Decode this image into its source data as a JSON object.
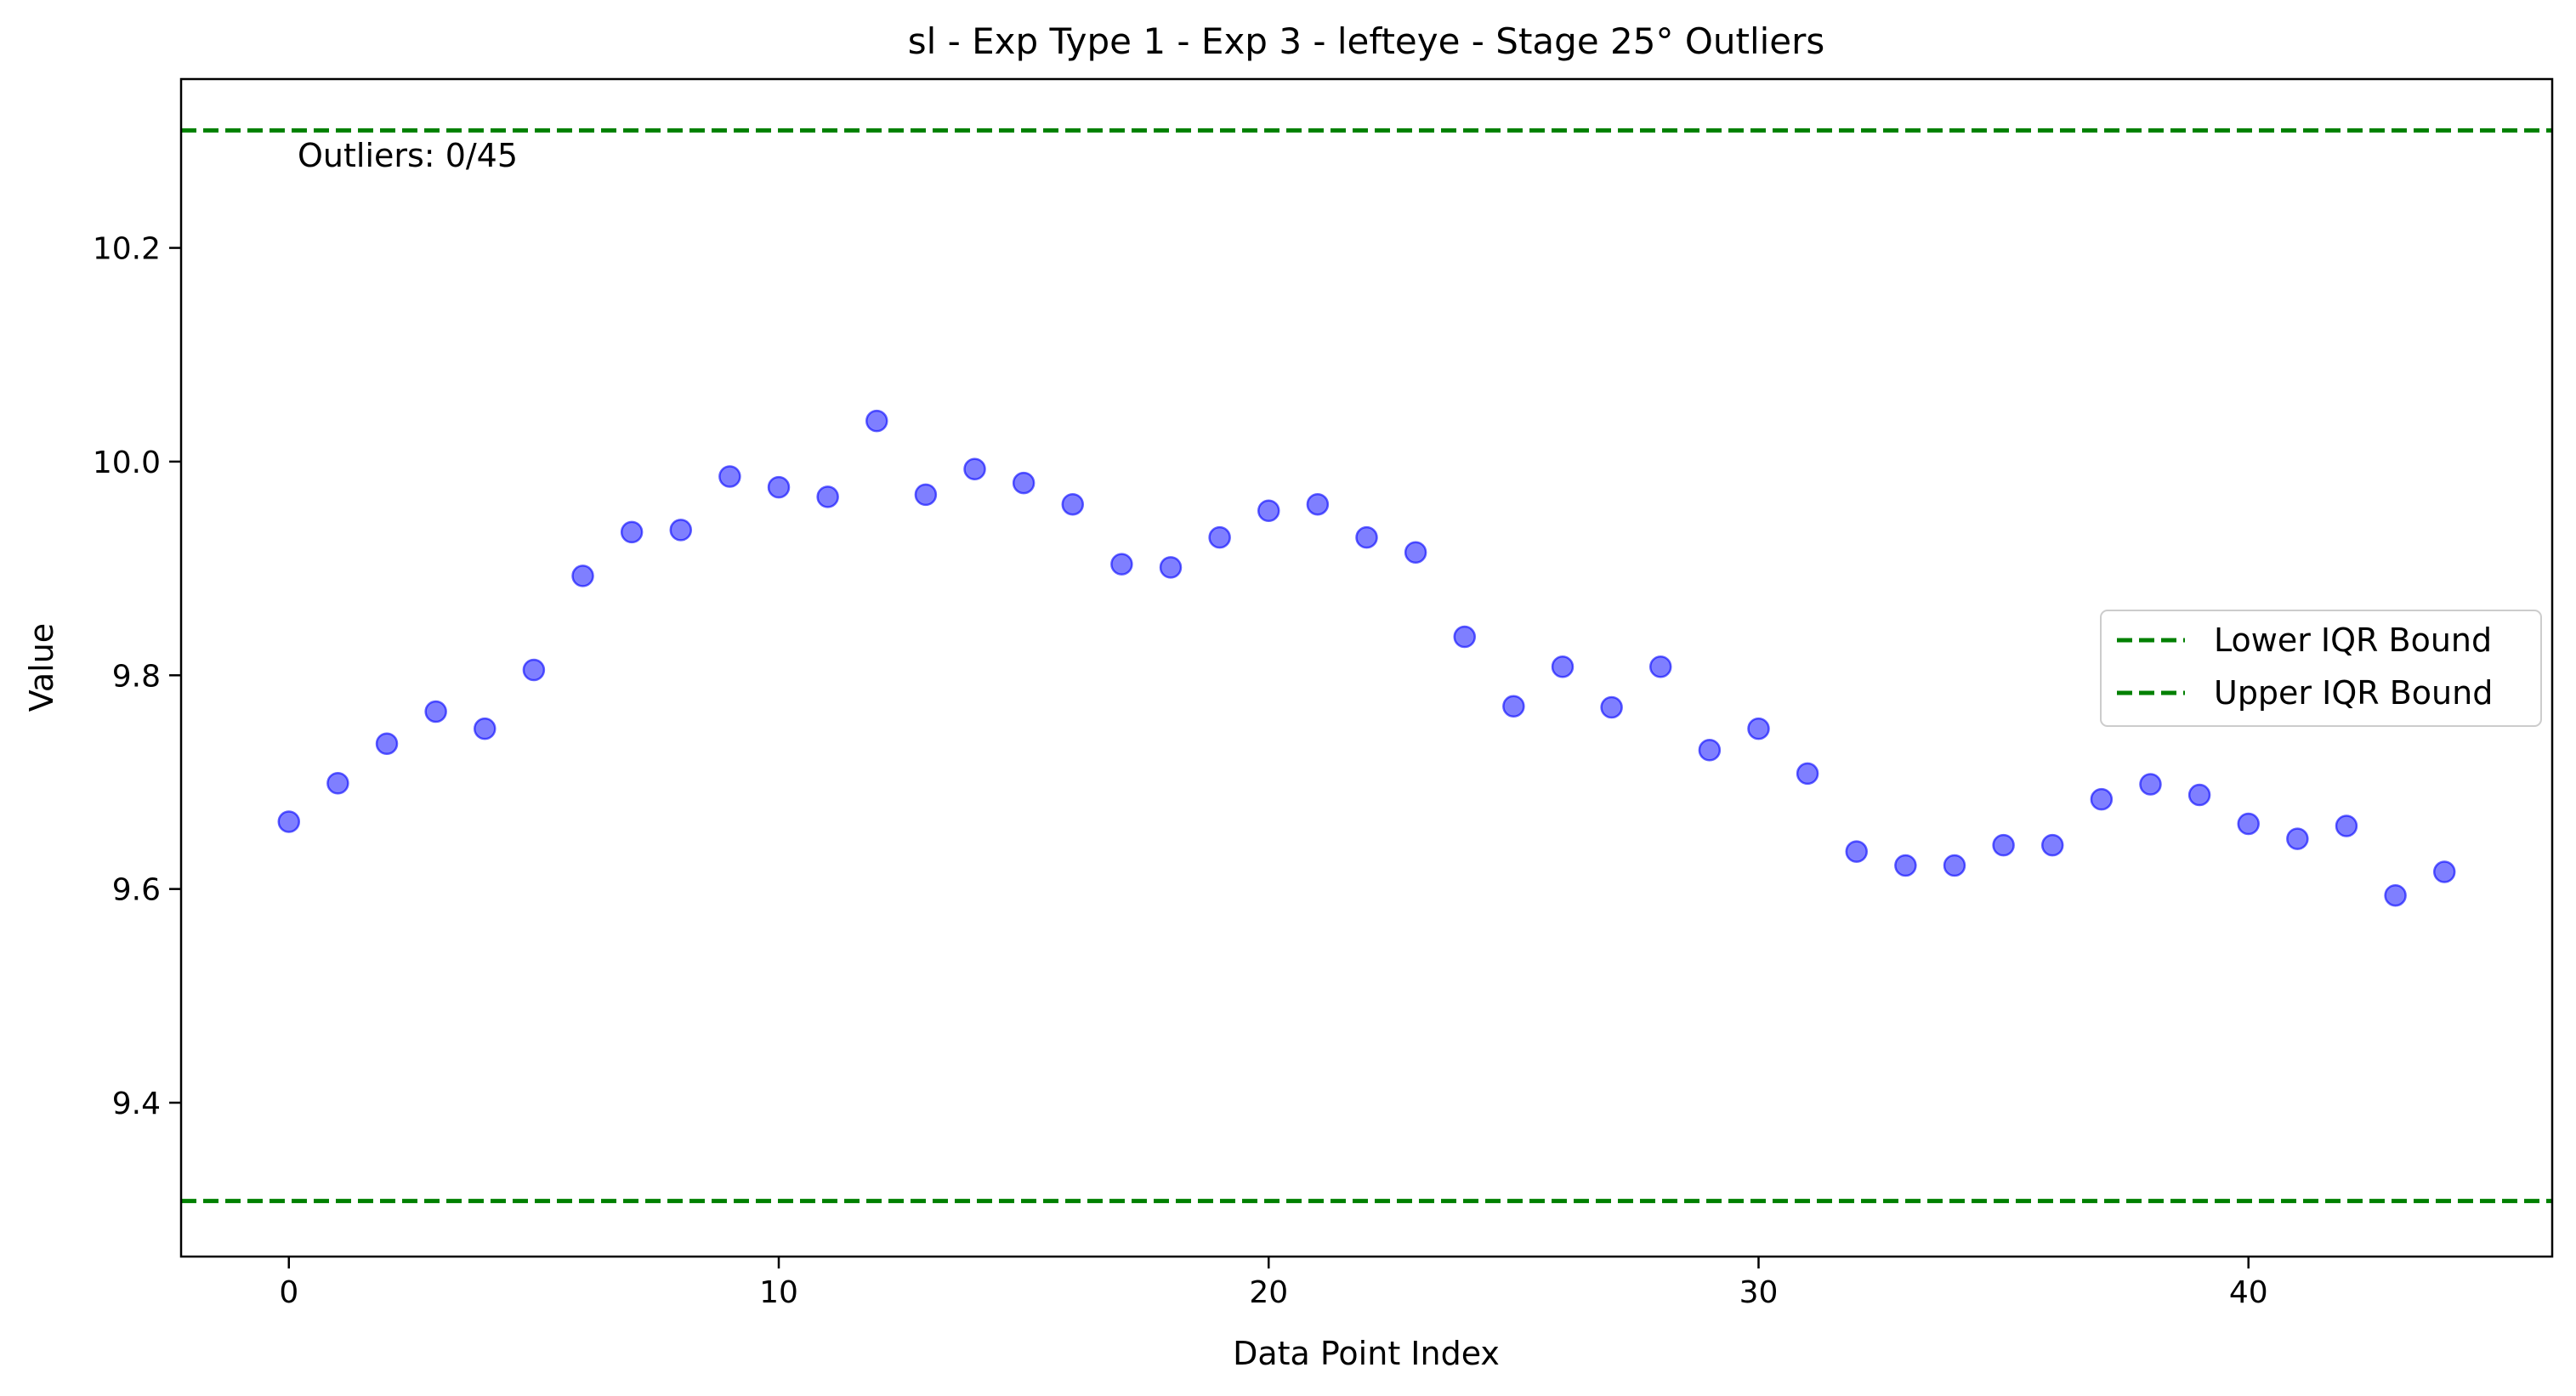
{
  "chart_data": {
    "type": "scatter",
    "title": "sl - Exp Type 1 - Exp 3 - lefteye - Stage 25° Outliers",
    "xlabel": "Data Point Index",
    "ylabel": "Value",
    "xlim": [
      -2.2,
      46.2
    ],
    "ylim": [
      9.256,
      10.358
    ],
    "xticks": [
      0,
      10,
      20,
      30,
      40
    ],
    "xtick_labels": [
      "0",
      "10",
      "20",
      "30",
      "40"
    ],
    "yticks": [
      9.4,
      9.6,
      9.8,
      10.0,
      10.2
    ],
    "ytick_labels": [
      "9.4",
      "9.6",
      "9.8",
      "10.0",
      "10.2"
    ],
    "grid": false,
    "x": [
      0,
      1,
      2,
      3,
      4,
      5,
      6,
      7,
      8,
      9,
      10,
      11,
      12,
      13,
      14,
      15,
      16,
      17,
      18,
      19,
      20,
      21,
      22,
      23,
      24,
      25,
      26,
      27,
      28,
      29,
      30,
      31,
      32,
      33,
      34,
      35,
      36,
      37,
      38,
      39,
      40,
      41,
      42,
      43,
      44
    ],
    "y": [
      9.663,
      9.699,
      9.736,
      9.766,
      9.75,
      9.805,
      9.893,
      9.934,
      9.936,
      9.986,
      9.976,
      9.967,
      10.038,
      9.969,
      9.993,
      9.98,
      9.96,
      9.904,
      9.901,
      9.929,
      9.954,
      9.96,
      9.929,
      9.915,
      9.836,
      9.771,
      9.808,
      9.77,
      9.808,
      9.73,
      9.75,
      9.708,
      9.635,
      9.622,
      9.622,
      9.641,
      9.641,
      9.684,
      9.698,
      9.688,
      9.661,
      9.647,
      9.659,
      9.594,
      9.616
    ],
    "point_color": "#0000ff",
    "bound_color": "#008000",
    "lower_bound": 9.308,
    "upper_bound": 10.31,
    "annotation": "Outliers: 0/45",
    "legend": {
      "placement": "center-right",
      "entries": [
        "Lower IQR Bound",
        "Upper IQR Bound"
      ]
    }
  }
}
